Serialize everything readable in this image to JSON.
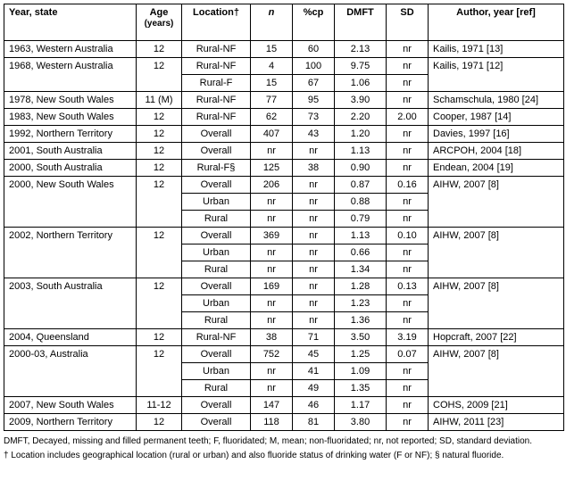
{
  "headers": {
    "year_state": "Year, state",
    "age": "Age",
    "age_unit": "(years)",
    "location": "Location†",
    "n": "n",
    "cp": "%cp",
    "dmft": "DMFT",
    "sd": "SD",
    "author": "Author, year [ref]"
  },
  "groups": [
    {
      "year_state": "1963, Western Australia",
      "age": "12",
      "author": "Kailis, 1971 [13]",
      "rows": [
        {
          "location": "Rural-NF",
          "n": "15",
          "cp": "60",
          "dmft": "2.13",
          "sd": "nr"
        }
      ]
    },
    {
      "year_state": "1968, Western Australia",
      "age": "12",
      "author": "Kailis, 1971 [12]",
      "rows": [
        {
          "location": "Rural-NF",
          "n": "4",
          "cp": "100",
          "dmft": "9.75",
          "sd": "nr"
        },
        {
          "location": "Rural-F",
          "n": "15",
          "cp": "67",
          "dmft": "1.06",
          "sd": "nr"
        }
      ]
    },
    {
      "year_state": "1978, New South Wales",
      "age": "11 (M)",
      "author": "Schamschula, 1980 [24]",
      "rows": [
        {
          "location": "Rural-NF",
          "n": "77",
          "cp": "95",
          "dmft": "3.90",
          "sd": "nr"
        }
      ]
    },
    {
      "year_state": "1983, New South Wales",
      "age": "12",
      "author": "Cooper, 1987 [14]",
      "rows": [
        {
          "location": "Rural-NF",
          "n": "62",
          "cp": "73",
          "dmft": "2.20",
          "sd": "2.00"
        }
      ]
    },
    {
      "year_state": "1992, Northern Territory",
      "age": "12",
      "author": "Davies, 1997 [16]",
      "rows": [
        {
          "location": "Overall",
          "n": "407",
          "cp": "43",
          "dmft": "1.20",
          "sd": "nr"
        }
      ]
    },
    {
      "year_state": "2001, South Australia",
      "age": "12",
      "author": "ARCPOH, 2004 [18]",
      "rows": [
        {
          "location": "Overall",
          "n": "nr",
          "cp": "nr",
          "dmft": "1.13",
          "sd": "nr"
        }
      ]
    },
    {
      "year_state": "2000, South Australia",
      "age": "12",
      "author": "Endean, 2004 [19]",
      "rows": [
        {
          "location": "Rural-F§",
          "n": "125",
          "cp": "38",
          "dmft": "0.90",
          "sd": "nr"
        }
      ]
    },
    {
      "year_state": "2000, New South Wales",
      "age": "12",
      "author": "AIHW, 2007 [8]",
      "rows": [
        {
          "location": "Overall",
          "n": "206",
          "cp": "nr",
          "dmft": "0.87",
          "sd": "0.16"
        },
        {
          "location": "Urban",
          "n": "nr",
          "cp": "nr",
          "dmft": "0.88",
          "sd": "nr"
        },
        {
          "location": "Rural",
          "n": "nr",
          "cp": "nr",
          "dmft": "0.79",
          "sd": "nr"
        }
      ]
    },
    {
      "year_state": "2002, Northern Territory",
      "age": "12",
      "author": "AIHW, 2007 [8]",
      "rows": [
        {
          "location": "Overall",
          "n": "369",
          "cp": "nr",
          "dmft": "1.13",
          "sd": "0.10"
        },
        {
          "location": "Urban",
          "n": "nr",
          "cp": "nr",
          "dmft": "0.66",
          "sd": "nr"
        },
        {
          "location": "Rural",
          "n": "nr",
          "cp": "nr",
          "dmft": "1.34",
          "sd": "nr"
        }
      ]
    },
    {
      "year_state": "2003, South Australia",
      "age": "12",
      "author": "AIHW, 2007 [8]",
      "rows": [
        {
          "location": "Overall",
          "n": "169",
          "cp": "nr",
          "dmft": "1.28",
          "sd": "0.13"
        },
        {
          "location": "Urban",
          "n": "nr",
          "cp": "nr",
          "dmft": "1.23",
          "sd": "nr"
        },
        {
          "location": "Rural",
          "n": "nr",
          "cp": "nr",
          "dmft": "1.36",
          "sd": "nr"
        }
      ]
    },
    {
      "year_state": "2004, Queensland",
      "age": "12",
      "author": "Hopcraft, 2007 [22]",
      "rows": [
        {
          "location": "Rural-NF",
          "n": "38",
          "cp": "71",
          "dmft": "3.50",
          "sd": "3.19"
        }
      ]
    },
    {
      "year_state": "2000-03, Australia",
      "age": "12",
      "author": "AIHW, 2007 [8]",
      "rows": [
        {
          "location": "Overall",
          "n": "752",
          "cp": "45",
          "dmft": "1.25",
          "sd": "0.07"
        },
        {
          "location": "Urban",
          "n": "nr",
          "cp": "41",
          "dmft": "1.09",
          "sd": "nr"
        },
        {
          "location": "Rural",
          "n": "nr",
          "cp": "49",
          "dmft": "1.35",
          "sd": "nr"
        }
      ]
    },
    {
      "year_state": "2007, New South Wales",
      "age": "11-12",
      "author": "COHS, 2009 [21]",
      "rows": [
        {
          "location": "Overall",
          "n": "147",
          "cp": "46",
          "dmft": "1.17",
          "sd": "nr"
        }
      ]
    },
    {
      "year_state": "2009, Northern Territory",
      "age": "12",
      "author": "AIHW, 2011 [23]",
      "rows": [
        {
          "location": "Overall",
          "n": "118",
          "cp": "81",
          "dmft": "3.80",
          "sd": "nr"
        }
      ]
    }
  ],
  "footnotes": {
    "abbreviations": "DMFT, Decayed, missing and filled permanent teeth; F, fluoridated; M, mean; non-fluoridated;  nr, not reported; SD, standard deviation.",
    "location_note": "† Location includes geographical location (rural or urban) and also fluoride status of drinking water (F or NF); § natural fluoride."
  }
}
